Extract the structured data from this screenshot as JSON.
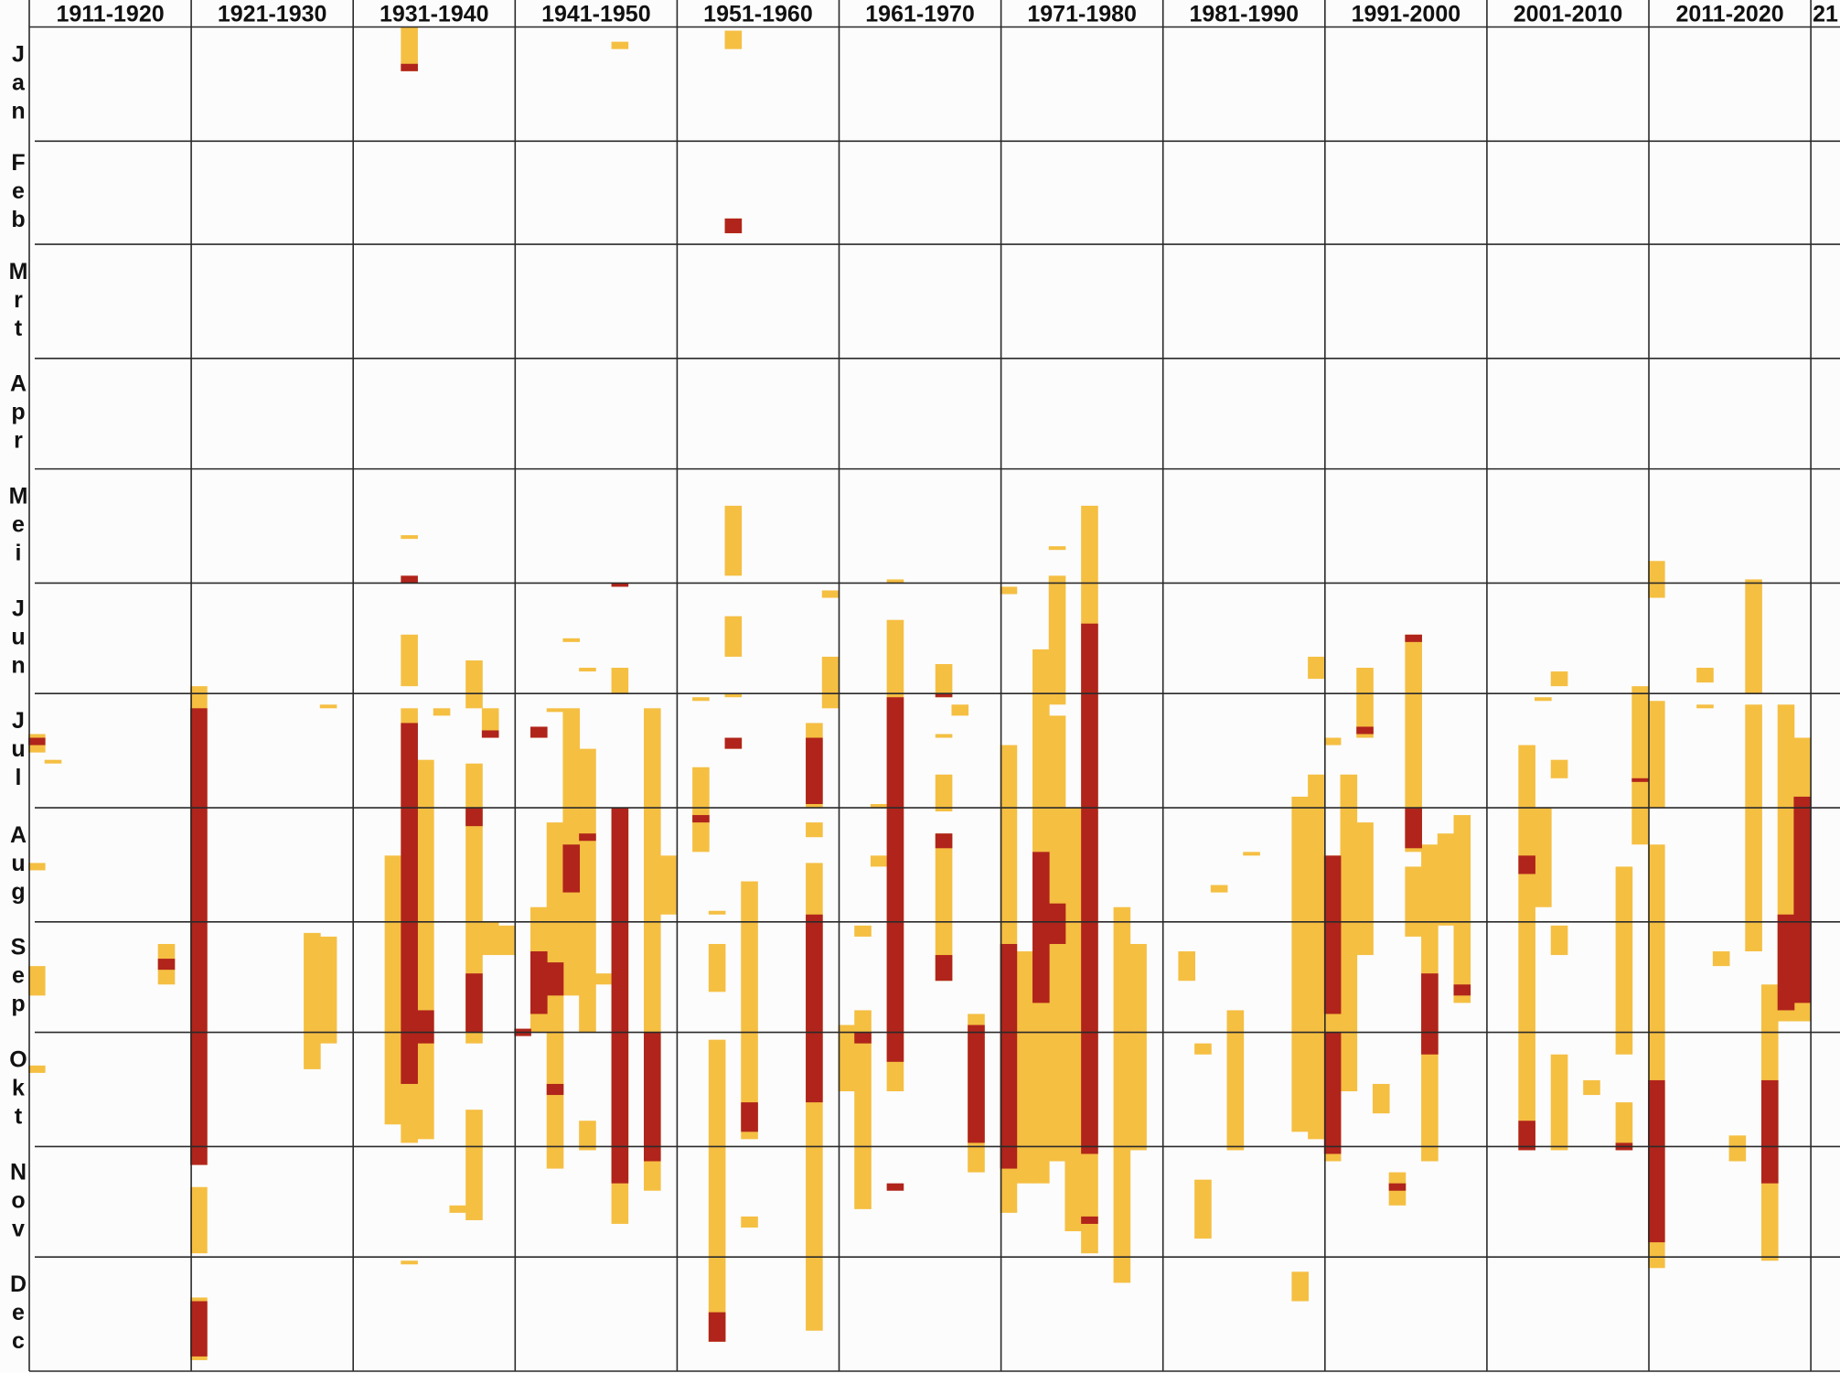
{
  "chart_data": {
    "type": "timeline",
    "categories": [
      "1911-1920",
      "1921-1930",
      "1931-1940",
      "1941-1950",
      "1951-1960",
      "1961-1970",
      "1971-1980",
      "1981-1990",
      "1991-2000",
      "2001-2010",
      "2011-2020",
      "21"
    ],
    "months": [
      "Jan",
      "Feb",
      "Mrt",
      "Apr",
      "Mei",
      "Jun",
      "Jul",
      "Aug",
      "Sep",
      "Okt",
      "Nov",
      "Dec"
    ],
    "xlim": [
      1911,
      2022.8
    ],
    "xticks": [
      1911,
      1921,
      1931,
      1941,
      1951,
      1961,
      1971,
      1981,
      1991,
      2001,
      2011,
      2021
    ],
    "ylim": [
      0,
      365
    ],
    "yticks": [
      0,
      31,
      59,
      90,
      120,
      151,
      181,
      212,
      243,
      273,
      304,
      334,
      365
    ],
    "grid": true,
    "series": [
      {
        "color": "#f5bf42",
        "x": [
          1911,
          1911,
          1911,
          1911,
          1912,
          1919,
          1921,
          1921,
          1921,
          1928,
          1929,
          1929,
          1933,
          1934,
          1934,
          1934,
          1934,
          1934,
          1935,
          1936,
          1937,
          1938,
          1938,
          1938,
          1939,
          1939,
          1940,
          1942,
          1943,
          1943,
          1944,
          1944,
          1945,
          1945,
          1945,
          1946,
          1947,
          1947,
          1947,
          1949,
          1950,
          1952,
          1952,
          1953,
          1953,
          1953,
          1954,
          1954,
          1954,
          1954,
          1954,
          1954,
          1955,
          1955,
          1959,
          1959,
          1959,
          1960,
          1960,
          1961,
          1962,
          1962,
          1963,
          1963,
          1964,
          1964,
          1967,
          1967,
          1967,
          1967,
          1968,
          1969,
          1971,
          1971,
          1972,
          1973,
          1974,
          1974,
          1974,
          1975,
          1976,
          1978,
          1979,
          1982,
          1983,
          1983,
          1984,
          1985,
          1986,
          1989,
          1989,
          1990,
          1990,
          1991,
          1991,
          1992,
          1993,
          1993,
          1994,
          1995,
          1996,
          1996,
          1997,
          1998,
          1999,
          2003,
          2004,
          2004,
          2005,
          2005,
          2005,
          2005,
          2007,
          2009,
          2009,
          2010,
          2011,
          2011,
          2011,
          2014,
          2014,
          2015,
          2016,
          2017,
          2017,
          2018,
          2019,
          2020
        ],
        "values": [
          [
            192,
            197
          ],
          [
            227,
            229
          ],
          [
            255,
            263
          ],
          [
            282,
            284
          ],
          [
            199,
            200
          ],
          [
            249,
            260
          ],
          [
            179,
            309
          ],
          [
            315,
            333
          ],
          [
            345,
            362
          ],
          [
            246,
            283
          ],
          [
            184,
            185
          ],
          [
            247,
            276
          ],
          [
            225,
            298
          ],
          [
            0,
            12
          ],
          [
            138,
            139
          ],
          [
            165,
            179
          ],
          [
            185,
            303
          ],
          [
            335,
            336
          ],
          [
            199,
            302
          ],
          [
            185,
            187
          ],
          [
            320,
            322
          ],
          [
            172,
            185
          ],
          [
            200,
            276
          ],
          [
            294,
            324
          ],
          [
            185,
            193
          ],
          [
            243,
            252
          ],
          [
            244,
            252
          ],
          [
            239,
            273
          ],
          [
            185,
            186
          ],
          [
            216,
            310
          ],
          [
            166,
            167
          ],
          [
            185,
            263
          ],
          [
            174,
            175
          ],
          [
            196,
            273
          ],
          [
            297,
            305
          ],
          [
            257,
            260
          ],
          [
            4,
            6
          ],
          [
            174,
            181
          ],
          [
            212,
            325
          ],
          [
            185,
            316
          ],
          [
            225,
            241
          ],
          [
            182,
            183
          ],
          [
            201,
            224
          ],
          [
            240,
            241
          ],
          [
            249,
            262
          ],
          [
            275,
            357
          ],
          [
            1,
            6
          ],
          [
            52,
            56
          ],
          [
            130,
            149
          ],
          [
            160,
            171
          ],
          [
            181,
            182
          ],
          [
            193,
            196
          ],
          [
            232,
            302
          ],
          [
            323,
            326
          ],
          [
            189,
            212
          ],
          [
            216,
            220
          ],
          [
            227,
            354
          ],
          [
            153,
            155
          ],
          [
            171,
            185
          ],
          [
            271,
            289
          ],
          [
            244,
            247
          ],
          [
            267,
            321
          ],
          [
            211,
            212
          ],
          [
            225,
            228
          ],
          [
            150,
            151
          ],
          [
            161,
            289
          ],
          [
            173,
            182
          ],
          [
            192,
            193
          ],
          [
            203,
            213
          ],
          [
            219,
            259
          ],
          [
            184,
            187
          ],
          [
            268,
            311
          ],
          [
            152,
            154
          ],
          [
            195,
            322
          ],
          [
            251,
            314
          ],
          [
            169,
            314
          ],
          [
            141,
            142
          ],
          [
            149,
            184
          ],
          [
            187,
            308
          ],
          [
            212,
            327
          ],
          [
            130,
            333
          ],
          [
            239,
            341
          ],
          [
            249,
            305
          ],
          [
            251,
            259
          ],
          [
            276,
            279
          ],
          [
            313,
            329
          ],
          [
            233,
            235
          ],
          [
            267,
            305
          ],
          [
            224,
            225
          ],
          [
            209,
            300
          ],
          [
            338,
            346
          ],
          [
            171,
            177
          ],
          [
            203,
            302
          ],
          [
            193,
            195
          ],
          [
            225,
            308
          ],
          [
            203,
            289
          ],
          [
            174,
            193
          ],
          [
            216,
            252
          ],
          [
            287,
            295
          ],
          [
            311,
            320
          ],
          [
            165,
            224
          ],
          [
            228,
            247
          ],
          [
            222,
            308
          ],
          [
            219,
            244
          ],
          [
            214,
            265
          ],
          [
            195,
            305
          ],
          [
            182,
            183
          ],
          [
            212,
            239
          ],
          [
            175,
            179
          ],
          [
            199,
            204
          ],
          [
            244,
            252
          ],
          [
            279,
            305
          ],
          [
            286,
            290
          ],
          [
            228,
            279
          ],
          [
            292,
            305
          ],
          [
            179,
            222
          ],
          [
            145,
            155
          ],
          [
            183,
            212
          ],
          [
            222,
            337
          ],
          [
            174,
            178
          ],
          [
            184,
            185
          ],
          [
            251,
            255
          ],
          [
            301,
            308
          ],
          [
            150,
            181
          ],
          [
            184,
            251
          ],
          [
            260,
            335
          ],
          [
            184,
            270
          ],
          [
            193,
            270
          ]
        ]
      },
      {
        "color": "#b0241b",
        "x": [
          1911,
          1919,
          1921,
          1921,
          1934,
          1934,
          1934,
          1935,
          1938,
          1938,
          1939,
          1941,
          1942,
          1942,
          1943,
          1943,
          1944,
          1945,
          1947,
          1947,
          1949,
          1952,
          1953,
          1954,
          1954,
          1955,
          1959,
          1959,
          1962,
          1964,
          1964,
          1967,
          1967,
          1967,
          1969,
          1971,
          1973,
          1974,
          1976,
          1976,
          1991,
          1991,
          1993,
          1995,
          1996,
          1996,
          1997,
          1999,
          2003,
          2003,
          2009,
          2010,
          2011,
          2018,
          2019,
          2020
        ],
        "values": [
          [
            193,
            195
          ],
          [
            253,
            256
          ],
          [
            185,
            309
          ],
          [
            346,
            361
          ],
          [
            10,
            12
          ],
          [
            149,
            151
          ],
          [
            189,
            287
          ],
          [
            267,
            276
          ],
          [
            212,
            217
          ],
          [
            257,
            273
          ],
          [
            191,
            193
          ],
          [
            272,
            274
          ],
          [
            190,
            193
          ],
          [
            251,
            268
          ],
          [
            254,
            263
          ],
          [
            287,
            290
          ],
          [
            222,
            235
          ],
          [
            219,
            221
          ],
          [
            151,
            152
          ],
          [
            212,
            314
          ],
          [
            273,
            308
          ],
          [
            214,
            216
          ],
          [
            349,
            357
          ],
          [
            52,
            56
          ],
          [
            193,
            196
          ],
          [
            292,
            300
          ],
          [
            193,
            211
          ],
          [
            241,
            292
          ],
          [
            273,
            276
          ],
          [
            182,
            281
          ],
          [
            314,
            316
          ],
          [
            181,
            182
          ],
          [
            219,
            223
          ],
          [
            252,
            259
          ],
          [
            271,
            303
          ],
          [
            249,
            310
          ],
          [
            224,
            265
          ],
          [
            238,
            249
          ],
          [
            162,
            306
          ],
          [
            323,
            325
          ],
          [
            225,
            268
          ],
          [
            273,
            306
          ],
          [
            190,
            192
          ],
          [
            314,
            316
          ],
          [
            165,
            167
          ],
          [
            212,
            223
          ],
          [
            257,
            279
          ],
          [
            260,
            263
          ],
          [
            225,
            230
          ],
          [
            297,
            305
          ],
          [
            303,
            305
          ],
          [
            204,
            205
          ],
          [
            286,
            330
          ],
          [
            286,
            314
          ],
          [
            241,
            267
          ],
          [
            209,
            265
          ]
        ]
      }
    ]
  }
}
